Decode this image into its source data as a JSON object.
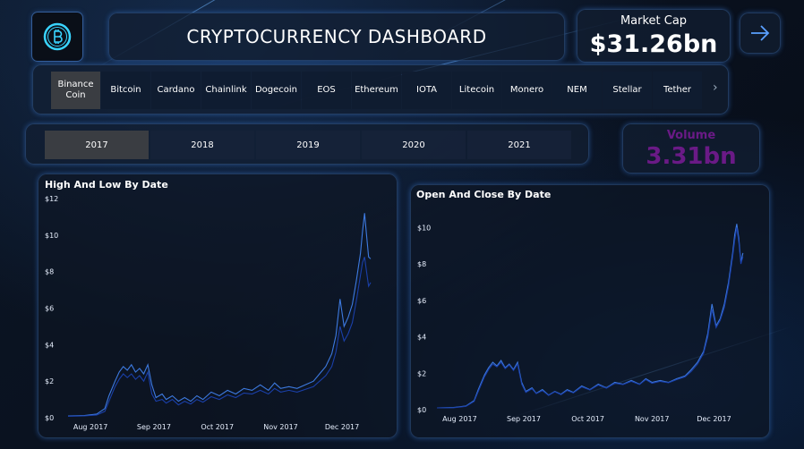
{
  "header": {
    "title": "CRYPTOCURRENCY DASHBOARD",
    "market_cap_label": "Market Cap",
    "market_cap_value": "$31.26bn"
  },
  "coins": [
    "Binance Coin",
    "Bitcoin",
    "Cardano",
    "Chainlink",
    "Dogecoin",
    "EOS",
    "Ethereum",
    "IOTA",
    "Litecoin",
    "Monero",
    "NEM",
    "Stellar",
    "Tether"
  ],
  "selected_coin": "Binance Coin",
  "years": [
    "2017",
    "2018",
    "2019",
    "2020",
    "2021"
  ],
  "selected_year": "2017",
  "volume": {
    "label": "Volume",
    "value": "3.31bn"
  },
  "colors": {
    "accent": "#3d7ae0",
    "volume": "#6a1a86",
    "selected_slicer": "#3a3d42"
  },
  "icons": {
    "logo": "bitcoin-logo-icon",
    "next": "arrow-right-icon",
    "scroll": "chevron-right-icon"
  },
  "chart_data": [
    {
      "type": "line",
      "title": "High And Low By Date",
      "ylim": [
        0,
        12
      ],
      "y_ticks": [
        "$0",
        "$2",
        "$4",
        "$6",
        "$8",
        "$10",
        "$12"
      ],
      "x_ticks": [
        "Aug 2017",
        "Sep 2017",
        "Oct 2017",
        "Nov 2017",
        "Dec 2017"
      ],
      "x_tick_pos": [
        11,
        42,
        73,
        104,
        134
      ],
      "x_range": [
        0,
        155
      ],
      "series": [
        {
          "values": [
            [
              0,
              0.1
            ],
            [
              8,
              0.12
            ],
            [
              14,
              0.2
            ],
            [
              18,
              0.5
            ],
            [
              20,
              1.2
            ],
            [
              23,
              2.0
            ],
            [
              25,
              2.5
            ],
            [
              27,
              2.8
            ],
            [
              29,
              2.6
            ],
            [
              31,
              2.9
            ],
            [
              33,
              2.5
            ],
            [
              35,
              2.7
            ],
            [
              37,
              2.4
            ],
            [
              39,
              2.9
            ],
            [
              41,
              1.8
            ],
            [
              43,
              1.1
            ],
            [
              46,
              1.3
            ],
            [
              48,
              1.0
            ],
            [
              51,
              1.2
            ],
            [
              54,
              0.9
            ],
            [
              57,
              1.1
            ],
            [
              60,
              0.9
            ],
            [
              63,
              1.2
            ],
            [
              66,
              1.0
            ],
            [
              70,
              1.4
            ],
            [
              74,
              1.2
            ],
            [
              78,
              1.5
            ],
            [
              82,
              1.3
            ],
            [
              86,
              1.6
            ],
            [
              90,
              1.5
            ],
            [
              94,
              1.8
            ],
            [
              98,
              1.5
            ],
            [
              101,
              1.9
            ],
            [
              104,
              1.6
            ],
            [
              108,
              1.7
            ],
            [
              112,
              1.6
            ],
            [
              116,
              1.8
            ],
            [
              120,
              2.0
            ],
            [
              123,
              2.4
            ],
            [
              126,
              2.8
            ],
            [
              129,
              3.5
            ],
            [
              131,
              4.5
            ],
            [
              133,
              6.5
            ],
            [
              135,
              5.0
            ],
            [
              137,
              5.5
            ],
            [
              139,
              6.2
            ],
            [
              141,
              7.5
            ],
            [
              143,
              9.0
            ],
            [
              144,
              10.2
            ],
            [
              145,
              11.2
            ],
            [
              146,
              10.0
            ],
            [
              147,
              8.8
            ],
            [
              148,
              8.7
            ]
          ]
        },
        {
          "values": [
            [
              0,
              0.08
            ],
            [
              8,
              0.1
            ],
            [
              14,
              0.15
            ],
            [
              18,
              0.35
            ],
            [
              20,
              0.9
            ],
            [
              23,
              1.7
            ],
            [
              25,
              2.1
            ],
            [
              27,
              2.4
            ],
            [
              29,
              2.2
            ],
            [
              31,
              2.4
            ],
            [
              33,
              2.1
            ],
            [
              35,
              2.3
            ],
            [
              37,
              2.0
            ],
            [
              39,
              2.5
            ],
            [
              41,
              1.3
            ],
            [
              43,
              0.9
            ],
            [
              46,
              1.0
            ],
            [
              48,
              0.8
            ],
            [
              51,
              1.0
            ],
            [
              54,
              0.7
            ],
            [
              57,
              0.9
            ],
            [
              60,
              0.75
            ],
            [
              63,
              1.0
            ],
            [
              66,
              0.85
            ],
            [
              70,
              1.15
            ],
            [
              74,
              1.0
            ],
            [
              78,
              1.25
            ],
            [
              82,
              1.1
            ],
            [
              86,
              1.35
            ],
            [
              90,
              1.3
            ],
            [
              94,
              1.5
            ],
            [
              98,
              1.3
            ],
            [
              101,
              1.6
            ],
            [
              104,
              1.4
            ],
            [
              108,
              1.5
            ],
            [
              112,
              1.4
            ],
            [
              116,
              1.55
            ],
            [
              120,
              1.7
            ],
            [
              123,
              2.0
            ],
            [
              126,
              2.3
            ],
            [
              129,
              2.8
            ],
            [
              131,
              3.6
            ],
            [
              133,
              5.0
            ],
            [
              135,
              4.2
            ],
            [
              137,
              4.6
            ],
            [
              139,
              5.2
            ],
            [
              141,
              6.4
            ],
            [
              143,
              7.8
            ],
            [
              144,
              8.5
            ],
            [
              145,
              8.8
            ],
            [
              146,
              8.0
            ],
            [
              147,
              7.2
            ],
            [
              148,
              7.4
            ]
          ]
        }
      ]
    },
    {
      "type": "line",
      "title": "Open And Close By Date",
      "ylim": [
        0,
        11
      ],
      "y_ticks": [
        "$0",
        "$2",
        "$4",
        "$6",
        "$8",
        "$10"
      ],
      "x_ticks": [
        "Aug 2017",
        "Sep 2017",
        "Oct 2017",
        "Nov 2017",
        "Dec 2017"
      ],
      "x_tick_pos": [
        11,
        42,
        73,
        104,
        134
      ],
      "x_range": [
        0,
        155
      ],
      "series": [
        {
          "values": [
            [
              0,
              0.1
            ],
            [
              8,
              0.12
            ],
            [
              14,
              0.2
            ],
            [
              18,
              0.5
            ],
            [
              20,
              1.1
            ],
            [
              23,
              1.9
            ],
            [
              25,
              2.3
            ],
            [
              27,
              2.6
            ],
            [
              29,
              2.4
            ],
            [
              31,
              2.7
            ],
            [
              33,
              2.3
            ],
            [
              35,
              2.5
            ],
            [
              37,
              2.2
            ],
            [
              39,
              2.6
            ],
            [
              41,
              1.5
            ],
            [
              43,
              1.0
            ],
            [
              46,
              1.2
            ],
            [
              48,
              0.9
            ],
            [
              51,
              1.1
            ],
            [
              54,
              0.8
            ],
            [
              57,
              1.0
            ],
            [
              60,
              0.85
            ],
            [
              63,
              1.1
            ],
            [
              66,
              0.95
            ],
            [
              70,
              1.3
            ],
            [
              74,
              1.1
            ],
            [
              78,
              1.4
            ],
            [
              82,
              1.2
            ],
            [
              86,
              1.5
            ],
            [
              90,
              1.4
            ],
            [
              94,
              1.6
            ],
            [
              98,
              1.4
            ],
            [
              101,
              1.7
            ],
            [
              104,
              1.5
            ],
            [
              108,
              1.6
            ],
            [
              112,
              1.5
            ],
            [
              116,
              1.7
            ],
            [
              120,
              1.85
            ],
            [
              123,
              2.2
            ],
            [
              126,
              2.6
            ],
            [
              129,
              3.2
            ],
            [
              131,
              4.2
            ],
            [
              133,
              5.8
            ],
            [
              135,
              4.6
            ],
            [
              137,
              5.0
            ],
            [
              139,
              5.8
            ],
            [
              141,
              7.0
            ],
            [
              143,
              8.6
            ],
            [
              144,
              9.6
            ],
            [
              145,
              10.2
            ],
            [
              146,
              9.4
            ],
            [
              147,
              8.1
            ],
            [
              148,
              8.6
            ]
          ]
        },
        {
          "values": [
            [
              0,
              0.1
            ],
            [
              8,
              0.11
            ],
            [
              14,
              0.18
            ],
            [
              18,
              0.45
            ],
            [
              20,
              1.0
            ],
            [
              23,
              1.8
            ],
            [
              25,
              2.2
            ],
            [
              27,
              2.5
            ],
            [
              29,
              2.35
            ],
            [
              31,
              2.6
            ],
            [
              33,
              2.25
            ],
            [
              35,
              2.45
            ],
            [
              37,
              2.15
            ],
            [
              39,
              2.5
            ],
            [
              41,
              1.4
            ],
            [
              43,
              0.95
            ],
            [
              46,
              1.15
            ],
            [
              48,
              0.88
            ],
            [
              51,
              1.05
            ],
            [
              54,
              0.78
            ],
            [
              57,
              0.98
            ],
            [
              60,
              0.82
            ],
            [
              63,
              1.05
            ],
            [
              66,
              0.92
            ],
            [
              70,
              1.25
            ],
            [
              74,
              1.08
            ],
            [
              78,
              1.35
            ],
            [
              82,
              1.18
            ],
            [
              86,
              1.45
            ],
            [
              90,
              1.38
            ],
            [
              94,
              1.55
            ],
            [
              98,
              1.38
            ],
            [
              101,
              1.65
            ],
            [
              104,
              1.45
            ],
            [
              108,
              1.55
            ],
            [
              112,
              1.48
            ],
            [
              116,
              1.65
            ],
            [
              120,
              1.8
            ],
            [
              123,
              2.1
            ],
            [
              126,
              2.5
            ],
            [
              129,
              3.1
            ],
            [
              131,
              4.0
            ],
            [
              133,
              5.5
            ],
            [
              135,
              4.5
            ],
            [
              137,
              4.9
            ],
            [
              139,
              5.6
            ],
            [
              141,
              6.8
            ],
            [
              143,
              8.4
            ],
            [
              144,
              9.3
            ],
            [
              145,
              10.0
            ],
            [
              146,
              9.2
            ],
            [
              147,
              8.0
            ],
            [
              148,
              8.4
            ]
          ]
        }
      ]
    }
  ]
}
